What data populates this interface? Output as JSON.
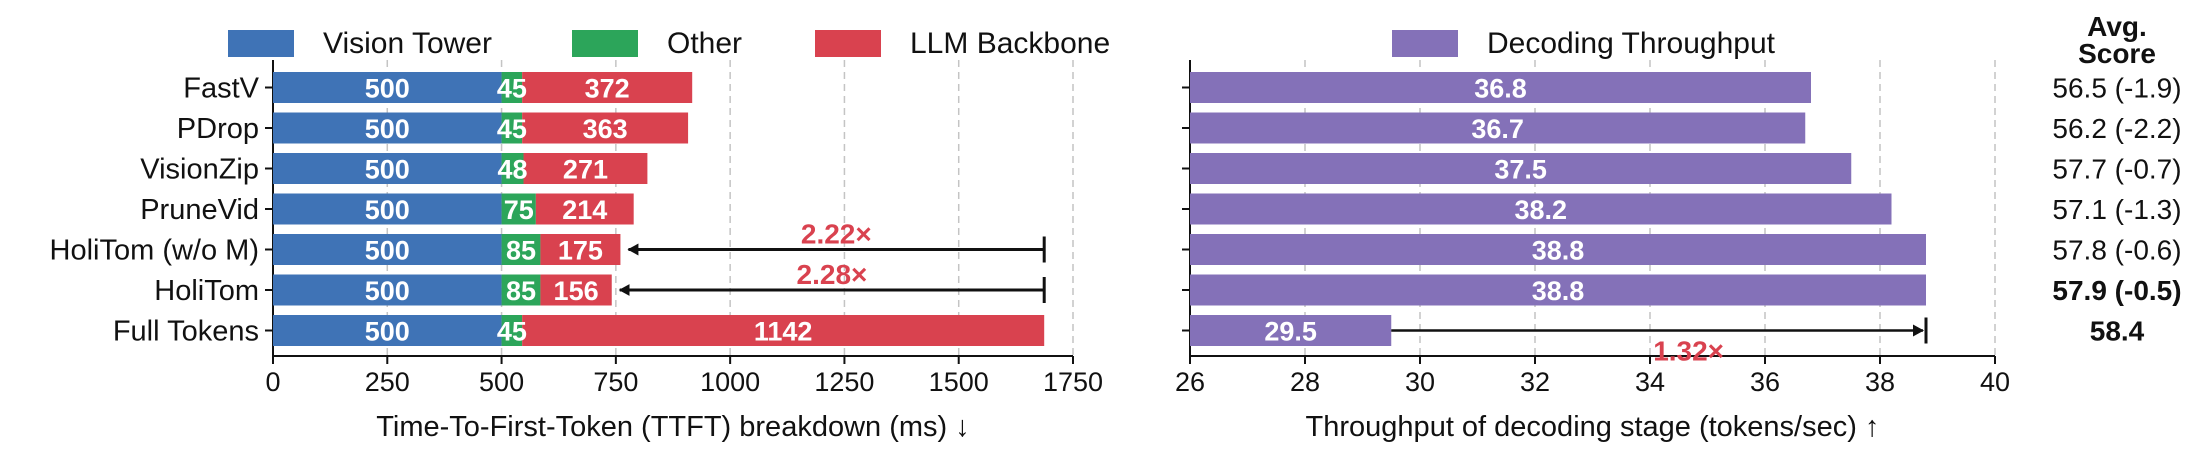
{
  "chart_data": [
    {
      "type": "bar",
      "orientation": "horizontal",
      "stacked": true,
      "categories": [
        "FastV",
        "PDrop",
        "VisionZip",
        "PruneVid",
        "HoliTom (w/o M)",
        "HoliTom",
        "Full Tokens"
      ],
      "series": [
        {
          "name": "Vision Tower",
          "color": "#3f73b6",
          "values": [
            500,
            500,
            500,
            500,
            500,
            500,
            500
          ]
        },
        {
          "name": "Other",
          "color": "#2ca55a",
          "values": [
            45,
            45,
            48,
            75,
            85,
            85,
            45
          ]
        },
        {
          "name": "LLM Backbone",
          "color": "#d9424f",
          "values": [
            372,
            363,
            271,
            214,
            175,
            156,
            1142
          ]
        }
      ],
      "xlabel": "Time-To-First-Token (TTFT) breakdown (ms) ↓",
      "xlim": [
        0,
        1750
      ],
      "xticks": [
        0,
        250,
        500,
        750,
        1000,
        1250,
        1500,
        1750
      ],
      "grid": "x-dashed",
      "annotations": [
        {
          "text": "2.22×",
          "from_category": "Full Tokens",
          "to_category": "HoliTom (w/o M)",
          "row": "HoliTom (w/o M)"
        },
        {
          "text": "2.28×",
          "from_category": "Full Tokens",
          "to_category": "HoliTom",
          "row": "HoliTom"
        }
      ],
      "annotation_color": "#d9424f"
    },
    {
      "type": "bar",
      "orientation": "horizontal",
      "categories": [
        "FastV",
        "PDrop",
        "VisionZip",
        "PruneVid",
        "HoliTom (w/o M)",
        "HoliTom",
        "Full Tokens"
      ],
      "series": [
        {
          "name": "Decoding Throughput",
          "color": "#8471b8",
          "values": [
            36.8,
            36.7,
            37.5,
            38.2,
            38.8,
            38.8,
            29.5
          ]
        }
      ],
      "xlabel": "Throughput of decoding stage (tokens/sec) ↑",
      "xlim": [
        26,
        40
      ],
      "xticks": [
        26,
        28,
        30,
        32,
        34,
        36,
        38,
        40
      ],
      "grid": "x-dashed",
      "annotations": [
        {
          "text": "1.32×",
          "from_value": 29.5,
          "to_value": 38.8,
          "row": "Full Tokens"
        }
      ],
      "annotation_color": "#d9424f"
    }
  ],
  "score_column": {
    "header": [
      "Avg.",
      "Score"
    ],
    "values": [
      "56.5 (-1.9)",
      "56.2 (-2.2)",
      "57.7 (-0.7)",
      "57.1 (-1.3)",
      "57.8 (-0.6)",
      "57.9 (-0.5)",
      "58.4"
    ],
    "bold": [
      false,
      false,
      false,
      false,
      false,
      true,
      true
    ]
  }
}
